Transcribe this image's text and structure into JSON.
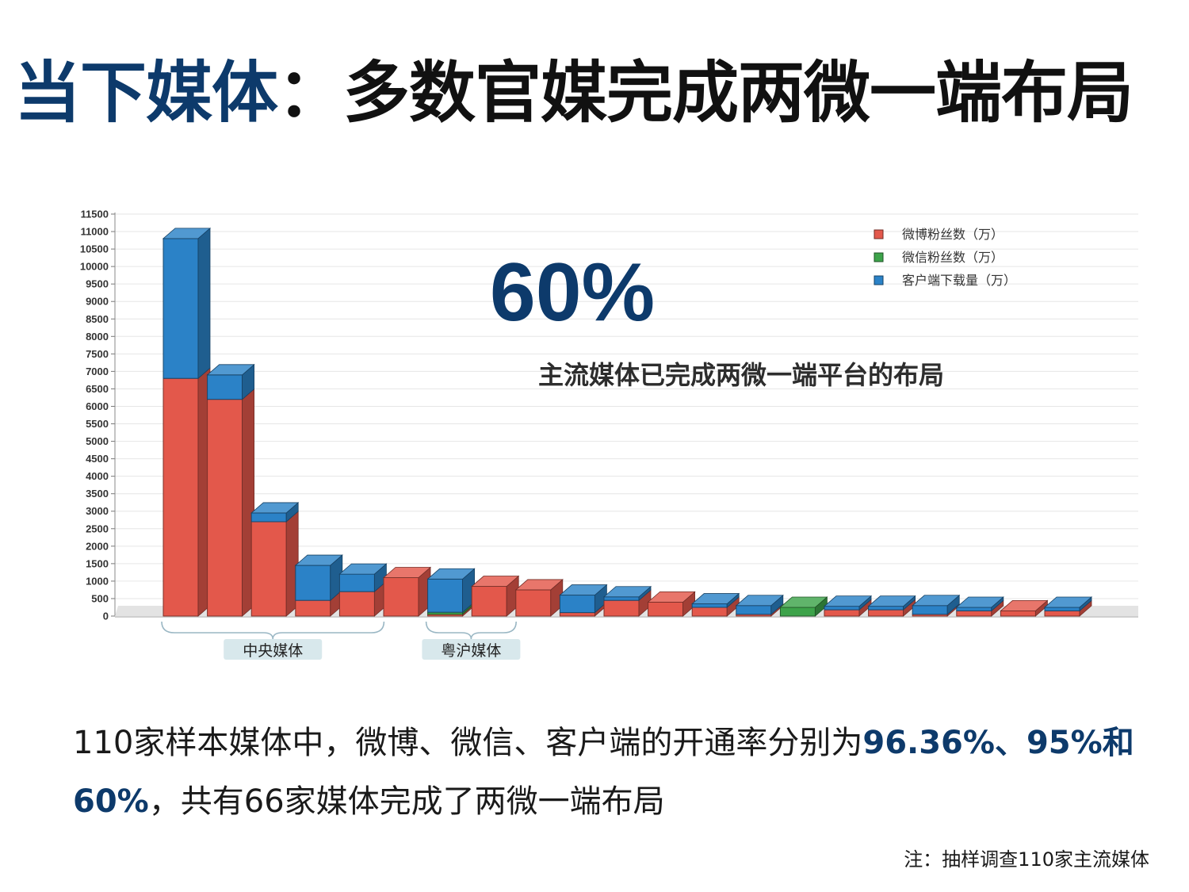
{
  "title": {
    "highlight": "当下媒体",
    "rest": "：多数官媒完成两微一端布局"
  },
  "callout": {
    "big_percent": "60%",
    "subtitle": "主流媒体已完成两微一端平台的布局"
  },
  "summary": {
    "part1": "110家样本媒体中，微博、微信、客户端的开通率分别为",
    "highlight1": "96.36%、95%和60%",
    "part2": "，共有66家媒体完成了两微一端布局"
  },
  "note": "注：抽样调查110家主流媒体",
  "colors": {
    "title_blue": "#0d3a6b",
    "weibo": "#e3584b",
    "weixin": "#3da34a",
    "app": "#2b82c7"
  },
  "chart_data": {
    "type": "bar",
    "stacked": true,
    "view": "3d",
    "ylim": [
      0,
      11500
    ],
    "yticks": [
      0,
      500,
      1000,
      1500,
      2000,
      2500,
      3000,
      3500,
      4000,
      4500,
      5000,
      5500,
      6000,
      6500,
      7000,
      7500,
      8000,
      8500,
      9000,
      9500,
      10000,
      10500,
      11000,
      11500
    ],
    "grid": true,
    "legend_position": "top-right",
    "series": [
      {
        "name": "微博粉丝数（万）",
        "color": "#e3584b",
        "values": [
          6800,
          6200,
          2700,
          450,
          700,
          1100,
          50,
          850,
          750,
          100,
          450,
          400,
          250,
          50,
          0,
          180,
          180,
          50,
          150,
          150,
          150
        ]
      },
      {
        "name": "微信粉丝数（万）",
        "color": "#3da34a",
        "values": [
          0,
          0,
          0,
          0,
          0,
          0,
          60,
          0,
          0,
          0,
          0,
          0,
          0,
          0,
          250,
          0,
          0,
          0,
          0,
          0,
          0
        ]
      },
      {
        "name": "客户端下载量（万）",
        "color": "#2b82c7",
        "values": [
          4000,
          700,
          250,
          1000,
          500,
          0,
          950,
          0,
          0,
          500,
          100,
          0,
          100,
          250,
          0,
          100,
          100,
          250,
          100,
          0,
          100
        ]
      }
    ],
    "groups": [
      {
        "label": "中央媒体",
        "from": 0,
        "to": 4
      },
      {
        "label": "粤沪媒体",
        "from": 6,
        "to": 7
      }
    ]
  }
}
